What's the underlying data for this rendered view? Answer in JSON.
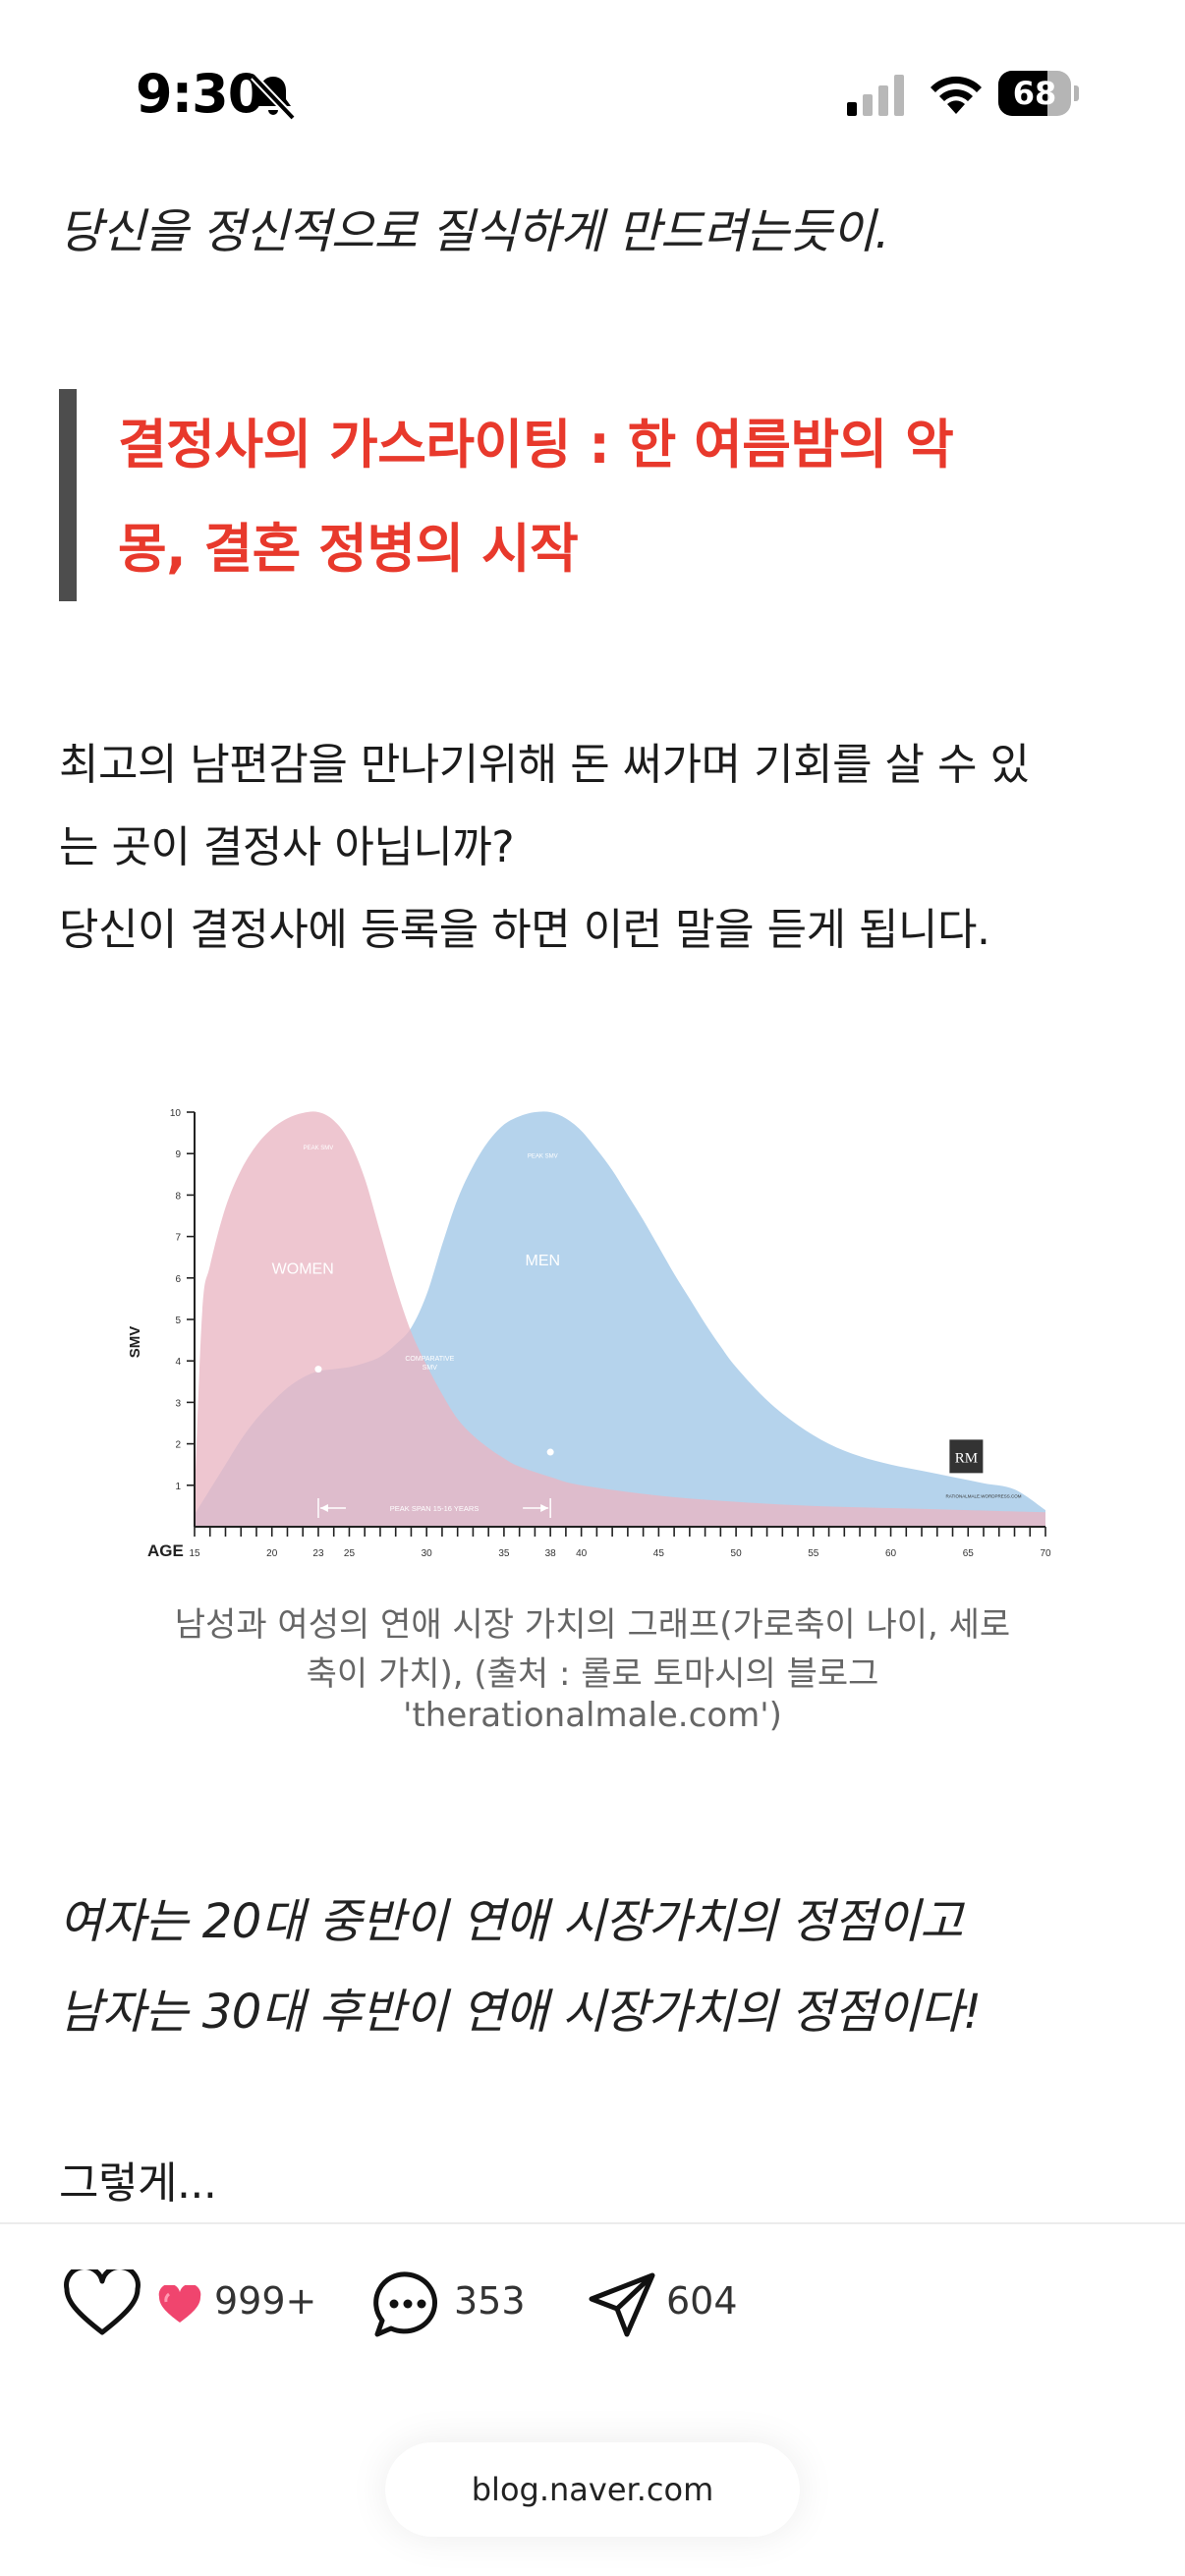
{
  "status_bar": {
    "time": "9:30",
    "battery_level": "68",
    "battery_fraction": 0.68
  },
  "post": {
    "intro_line": "당신을 정신적으로 질식하게 만드려는듯이.",
    "quote": [
      "결정사의 가스라이팅 : 한 여름밤의 악",
      "몽, 결혼 정병의 시작"
    ],
    "paragraph": [
      "최고의 남편감을 만나기위해 돈 써가며 기회를 살 수 있",
      "는 곳이 결정사 아닙니까?",
      "당신이 결정사에 등록을 하면 이런 말을 듣게 됩니다."
    ],
    "caption": [
      "남성과 여성의 연애 시장 가치의 그래프(가로축이 나이, 세로",
      "축이 가치), (출처 : 롤로 토마시의 블로그",
      "'therationalmale.com')"
    ],
    "italic_lines": [
      "여자는 20대 중반이 연애 시장가치의 정점이고",
      "남자는 30대 후반이 연애 시장가치의 정점이다!"
    ],
    "closing": "그렇게..."
  },
  "chart_data": {
    "type": "area",
    "xlabel": "AGE",
    "ylabel": "SMV",
    "xlim": [
      15,
      70
    ],
    "ylim": [
      0,
      10
    ],
    "x_ticks": [
      15,
      20,
      23,
      25,
      30,
      35,
      38,
      40,
      45,
      50,
      55,
      60,
      65,
      70
    ],
    "y_ticks": [
      1,
      2,
      3,
      4,
      5,
      6,
      7,
      8,
      9,
      10
    ],
    "series": [
      {
        "name": "WOMEN",
        "color": "#e9b6c3",
        "x": [
          15,
          15.5,
          16,
          17,
          18,
          19,
          20,
          21,
          22,
          23,
          24,
          25,
          26,
          27,
          28,
          29,
          30,
          31,
          32,
          33,
          34,
          35,
          36,
          38,
          40,
          45,
          50,
          55,
          60,
          65,
          70
        ],
        "y": [
          0.7,
          5.2,
          6.3,
          7.7,
          8.6,
          9.2,
          9.6,
          9.85,
          9.98,
          10,
          9.8,
          9.3,
          8.4,
          7.1,
          5.8,
          4.7,
          3.9,
          3.2,
          2.6,
          2.2,
          1.9,
          1.65,
          1.45,
          1.2,
          1.0,
          0.75,
          0.6,
          0.5,
          0.45,
          0.4,
          0.35
        ],
        "peak_label": "PEAK SMV"
      },
      {
        "name": "MEN",
        "color": "#b5d3ec",
        "x": [
          15,
          16,
          17,
          18,
          19,
          20,
          21,
          22,
          23,
          24,
          25,
          26,
          27,
          28,
          29,
          30,
          31,
          32,
          33,
          34,
          35,
          36,
          37,
          38,
          39,
          40,
          41,
          42,
          43,
          44,
          45,
          46,
          47,
          48,
          49,
          50,
          52,
          54,
          56,
          58,
          60,
          62,
          64,
          66,
          68,
          70
        ],
        "y": [
          0.3,
          0.9,
          1.5,
          2.1,
          2.6,
          3.0,
          3.35,
          3.6,
          3.75,
          3.8,
          3.85,
          3.95,
          4.1,
          4.4,
          4.8,
          5.6,
          6.8,
          7.9,
          8.7,
          9.3,
          9.7,
          9.9,
          10,
          10,
          9.85,
          9.55,
          9.1,
          8.6,
          8.0,
          7.4,
          6.75,
          6.1,
          5.5,
          4.9,
          4.35,
          3.85,
          3.05,
          2.45,
          2.0,
          1.7,
          1.5,
          1.35,
          1.2,
          1.05,
          0.9,
          0.4
        ],
        "peak_label": "PEAK SMV"
      }
    ],
    "annotations": {
      "women_label": "WOMEN",
      "men_label": "MEN",
      "crossover": [
        "COMPARATIVE",
        "SMV"
      ],
      "peak_span": "PEAK SPAN 15-16 YEARS",
      "peak_span_range": [
        23,
        38
      ],
      "markers": [
        {
          "x": 23,
          "y": 3.8
        },
        {
          "x": 38,
          "y": 1.8
        }
      ],
      "watermark": "RM",
      "site": "RATIONALMALE.WORDPRESS.COM"
    }
  },
  "actions": {
    "likes": "999+",
    "comments": "353",
    "shares": "604"
  },
  "url_bar": {
    "domain": "blog.naver.com"
  }
}
